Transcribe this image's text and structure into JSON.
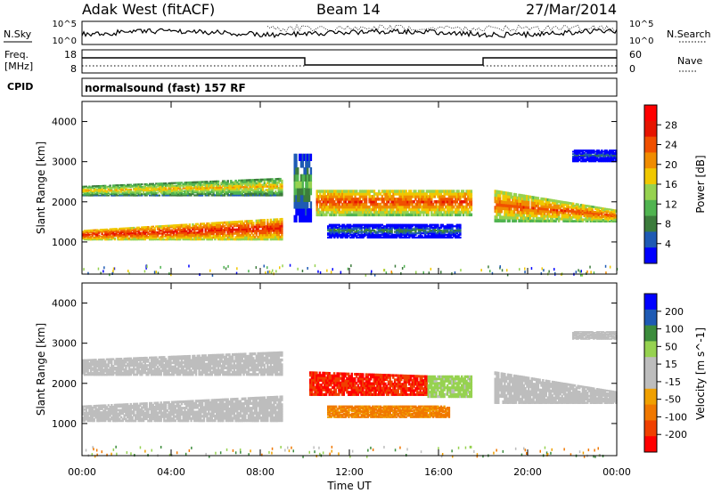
{
  "header": {
    "station": "Adak West (fitACF)",
    "beam": "Beam 14",
    "date": "27/Mar/2014"
  },
  "left_labels": {
    "nsky": "N.Sky",
    "freq_line1": "Freq.",
    "freq_line2": "[MHz]",
    "cpid": "CPID"
  },
  "right_labels": {
    "nsearch": "N.Search",
    "nave": "Nave"
  },
  "top_panels": {
    "noise_ticks": [
      "10^5",
      "10^0"
    ],
    "noise_right_ticks": [
      "10^5",
      "10^0"
    ],
    "freq_ticks": [
      "18",
      "8"
    ],
    "nave_ticks": [
      "60",
      "0"
    ],
    "cpid_text": "normalsound (fast) 157 RF"
  },
  "colors": {
    "ground_scatter": "#bdbdbd",
    "power_scale": [
      "#0000ff",
      "#1e5ab4",
      "#3c7c3c",
      "#50b450",
      "#96d250",
      "#f0c800",
      "#f08c00",
      "#f05000",
      "#e61400",
      "#ff0000"
    ],
    "velocity_scale": [
      "#ff0000",
      "#f04000",
      "#f07800",
      "#f0a000",
      "#bdbdbd",
      "#bdbdbd",
      "#96d250",
      "#3c8c3c",
      "#1e5ab4",
      "#0000ff"
    ]
  },
  "chart_data": [
    {
      "type": "heatmap",
      "title": "",
      "quantity": "Power",
      "ylabel": "Slant Range [km]",
      "xlabel": "",
      "x_ticks": [
        "00:00",
        "04:00",
        "08:00",
        "12:00",
        "16:00",
        "20:00",
        "00:00"
      ],
      "x_range_hours": [
        0,
        24
      ],
      "ylim": [
        200,
        4500
      ],
      "y_ticks": [
        "1000",
        "2000",
        "3000",
        "4000"
      ],
      "y_tick_values": [
        1000,
        2000,
        3000,
        4000
      ],
      "colorbar_label": "Power [dB]",
      "colorbar_ticks": [
        "4",
        "8",
        "12",
        "16",
        "20",
        "24",
        "28"
      ],
      "colorbar_range": [
        0,
        32
      ],
      "echo_bands": [
        {
          "t_start": 0.0,
          "t_end": 9.0,
          "range_start_km": 1050,
          "range_end_km": 1300,
          "range_end_at_end_km": 1600,
          "level": 27
        },
        {
          "t_start": 0.0,
          "t_end": 9.0,
          "range_start_km": 2150,
          "range_end_km": 2400,
          "range_end_at_end_km": 2600,
          "level": 19
        },
        {
          "t_start": 9.5,
          "t_end": 10.3,
          "range_start_km": 1500,
          "range_end_km": 3200,
          "range_end_at_end_km": 3200,
          "level": 12
        },
        {
          "t_start": 10.5,
          "t_end": 17.5,
          "range_start_km": 1650,
          "range_end_km": 2300,
          "range_end_at_end_km": 2300,
          "level": 25
        },
        {
          "t_start": 11.0,
          "t_end": 17.0,
          "range_start_km": 1100,
          "range_end_km": 1450,
          "range_end_at_end_km": 1450,
          "level": 8
        },
        {
          "t_start": 18.5,
          "t_end": 24.0,
          "range_start_km": 1500,
          "range_end_km": 2300,
          "range_end_at_end_km": 1800,
          "level": 24
        },
        {
          "t_start": 22.0,
          "t_end": 24.0,
          "range_start_km": 3000,
          "range_end_km": 3300,
          "range_end_at_end_km": 3300,
          "level": 6
        }
      ]
    },
    {
      "type": "heatmap",
      "title": "",
      "quantity": "Velocity",
      "ylabel": "Slant Range [km]",
      "xlabel": "Time UT",
      "x_ticks": [
        "00:00",
        "04:00",
        "08:00",
        "12:00",
        "16:00",
        "20:00",
        "00:00"
      ],
      "x_range_hours": [
        0,
        24
      ],
      "ylim": [
        200,
        4500
      ],
      "y_ticks": [
        "1000",
        "2000",
        "3000",
        "4000"
      ],
      "y_tick_values": [
        1000,
        2000,
        3000,
        4000
      ],
      "colorbar_label": "Velocity [m s^-1]",
      "colorbar_ticks": [
        "200",
        "100",
        "50",
        "15",
        "-15",
        "-50",
        "-100",
        "-200"
      ],
      "colorbar_range": [
        -250,
        250
      ],
      "echo_bands": [
        {
          "t_start": 0.0,
          "t_end": 9.0,
          "range_start_km": 1050,
          "range_end_km": 1450,
          "range_end_at_end_km": 1700,
          "kind": "ground"
        },
        {
          "t_start": 0.0,
          "t_end": 9.0,
          "range_start_km": 2200,
          "range_end_km": 2600,
          "range_end_at_end_km": 2800,
          "kind": "ground"
        },
        {
          "t_start": 10.2,
          "t_end": 15.5,
          "range_start_km": 1700,
          "range_end_km": 2300,
          "range_end_at_end_km": 2200,
          "velocity": -200
        },
        {
          "t_start": 15.5,
          "t_end": 17.5,
          "range_start_km": 1650,
          "range_end_km": 2200,
          "range_end_at_end_km": 2200,
          "velocity": 30
        },
        {
          "t_start": 11.0,
          "t_end": 16.5,
          "range_start_km": 1150,
          "range_end_km": 1450,
          "range_end_at_end_km": 1450,
          "velocity": -60
        },
        {
          "t_start": 18.5,
          "t_end": 24.0,
          "range_start_km": 1500,
          "range_end_km": 2300,
          "range_end_at_end_km": 1800,
          "kind": "ground"
        },
        {
          "t_start": 22.0,
          "t_end": 24.0,
          "range_start_km": 3100,
          "range_end_km": 3300,
          "range_end_at_end_km": 3300,
          "kind": "ground"
        }
      ]
    }
  ]
}
